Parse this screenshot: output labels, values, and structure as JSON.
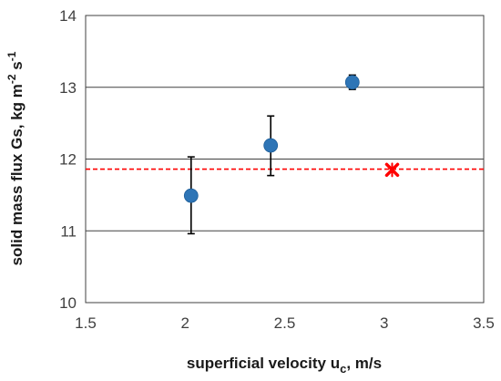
{
  "chart_data": {
    "type": "scatter",
    "xlim": [
      1.5,
      3.5
    ],
    "ylim": [
      10,
      14
    ],
    "xticks": [
      "1.5",
      "2",
      "2.5",
      "3",
      "3.5"
    ],
    "yticks": [
      "10",
      "11",
      "12",
      "13",
      "14"
    ],
    "ygrid": [
      11,
      12,
      13,
      14
    ],
    "xlabel": {
      "main": "superficial velocity u",
      "sub": "c",
      "rest": ", m/s"
    },
    "ylabel": {
      "main": "solid mass flux Gs, kg m",
      "sup1": "-2",
      "mid": " s",
      "sup2": "-1"
    },
    "series": [
      {
        "marker": "circle",
        "color": "#2E75B6",
        "points": [
          {
            "x": 2.03,
            "y": 11.49,
            "err_low": 10.96,
            "err_high": 12.03
          },
          {
            "x": 2.43,
            "y": 12.19,
            "err_low": 11.77,
            "err_high": 12.6
          },
          {
            "x": 2.84,
            "y": 13.07,
            "err_low": 12.97,
            "err_high": 13.17
          }
        ]
      },
      {
        "marker": "x",
        "color": "#FF0000",
        "points": [
          {
            "x": 3.04,
            "y": 11.85
          }
        ]
      }
    ],
    "reference_line": {
      "y": 11.86,
      "color": "#FF0000",
      "style": "dashed"
    },
    "grid_color": "#404040"
  }
}
